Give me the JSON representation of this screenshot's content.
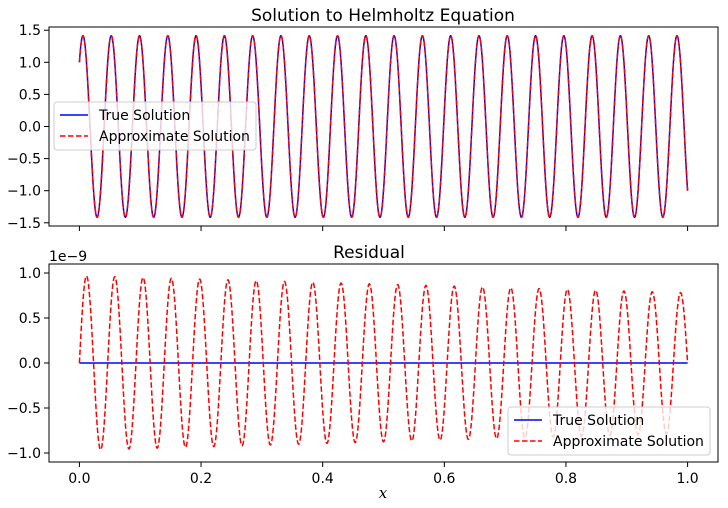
{
  "chart_data": [
    {
      "type": "line",
      "title": "Solution to Helmholtz Equation",
      "xlabel": "",
      "ylabel": "",
      "xlim": [
        -0.05,
        1.05
      ],
      "ylim": [
        -1.55,
        1.55
      ],
      "yticks": [
        1.5,
        1.0,
        0.5,
        0.0,
        -0.5,
        -1.0,
        -1.5
      ],
      "ytick_labels": [
        "1.5",
        "1.0",
        "0.5",
        "0.0",
        "−0.5",
        "−1.0",
        "−1.5"
      ],
      "xticks": [
        0,
        0.2,
        0.4,
        0.6,
        0.8,
        1.0
      ],
      "xtick_labels": [
        "",
        "",
        "",
        "",
        "",
        ""
      ],
      "grid": false,
      "legend_position": "center-left",
      "oscillations": 21.5,
      "amplitude": 1.414,
      "series": [
        {
          "name": "True Solution",
          "style": "solid",
          "color": "#0000ff",
          "formula": "cos(2*pi*k*x)+sin(2*pi*k*x)"
        },
        {
          "name": "Approximate Solution",
          "style": "dashed",
          "color": "#ff0000",
          "formula": "cos(2*pi*k*x)+sin(2*pi*k*x)"
        }
      ]
    },
    {
      "type": "line",
      "title": "Residual",
      "xlabel": "x",
      "ylabel": "",
      "offset_text": "1e−9",
      "xlim": [
        -0.05,
        1.05
      ],
      "ylim": [
        -1.1,
        1.1
      ],
      "yticks": [
        1.0,
        0.5,
        0.0,
        -0.5,
        -1.0
      ],
      "ytick_labels": [
        "1.0",
        "0.5",
        "0.0",
        "−0.5",
        "−1.0"
      ],
      "xticks": [
        0,
        0.2,
        0.4,
        0.6,
        0.8,
        1.0
      ],
      "xtick_labels": [
        "0.0",
        "0.2",
        "0.4",
        "0.6",
        "0.8",
        "1.0"
      ],
      "grid": false,
      "legend_position": "lower-right",
      "oscillations": 21.5,
      "amplitude_start": 0.97,
      "amplitude_end": 0.78,
      "series": [
        {
          "name": "True Solution",
          "style": "solid",
          "color": "#0000ff",
          "value": 0
        },
        {
          "name": "Approximate Solution",
          "style": "dashed",
          "color": "#ff0000",
          "formula": "A(x)*sin(2*pi*k*x)"
        }
      ]
    }
  ]
}
